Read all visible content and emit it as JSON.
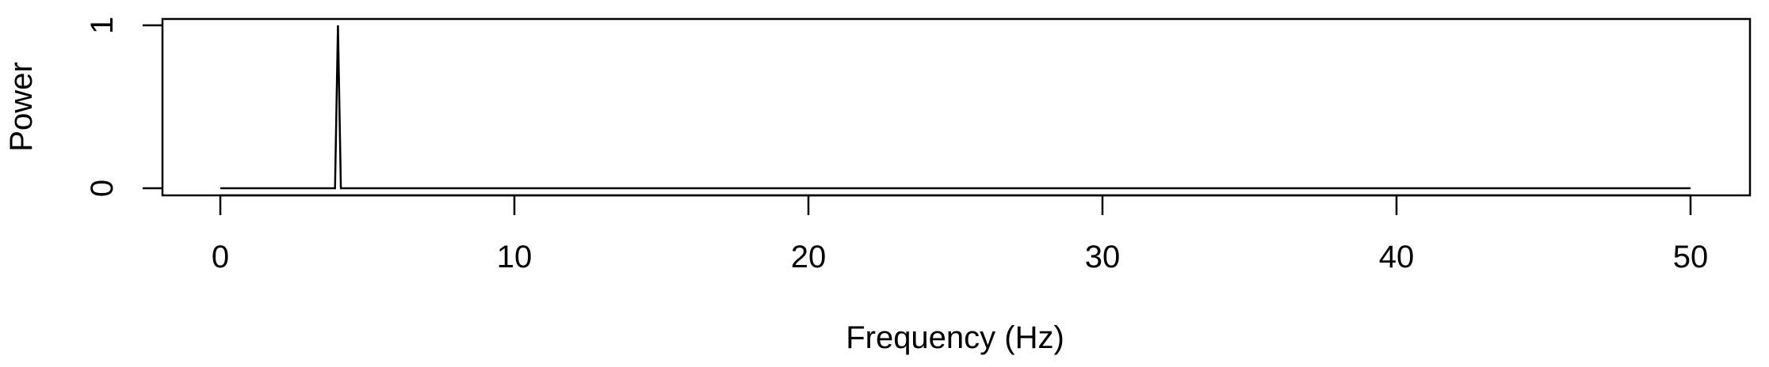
{
  "chart_data": {
    "type": "line",
    "title": "",
    "xlabel": "Frequency (Hz)",
    "ylabel": "Power",
    "xlim": [
      0,
      50
    ],
    "ylim": [
      0,
      1
    ],
    "x_ticks": [
      0,
      10,
      20,
      30,
      40,
      50
    ],
    "x_tick_labels": [
      "0",
      "10",
      "20",
      "30",
      "40",
      "50"
    ],
    "y_ticks": [
      0,
      1
    ],
    "y_tick_labels": [
      "0",
      "1"
    ],
    "grid": false,
    "legend": "none",
    "series": [
      {
        "x": [
          0,
          3.9,
          4.0,
          4.1,
          50
        ],
        "y": [
          0,
          0,
          1,
          0,
          0
        ]
      }
    ]
  }
}
